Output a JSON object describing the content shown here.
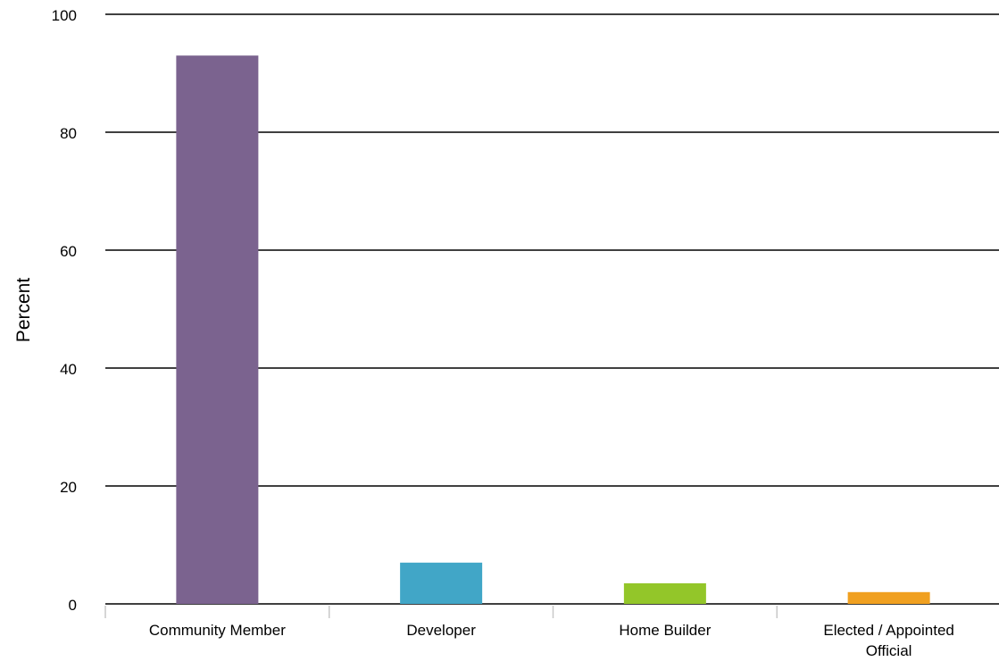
{
  "chart_data": {
    "type": "bar",
    "title": "",
    "xlabel": "",
    "ylabel": "Percent",
    "ylim": [
      0,
      100
    ],
    "yticks": [
      0,
      20,
      40,
      60,
      80,
      100
    ],
    "grid": true,
    "legend": "none",
    "categories": [
      [
        "Community Member"
      ],
      [
        "Developer"
      ],
      [
        "Home Builder"
      ],
      [
        "Elected / Appointed",
        "Official"
      ]
    ],
    "values": [
      93,
      7,
      3.5,
      2
    ],
    "colors": [
      "#7b638f",
      "#41a6c7",
      "#93c629",
      "#f0a020"
    ]
  }
}
